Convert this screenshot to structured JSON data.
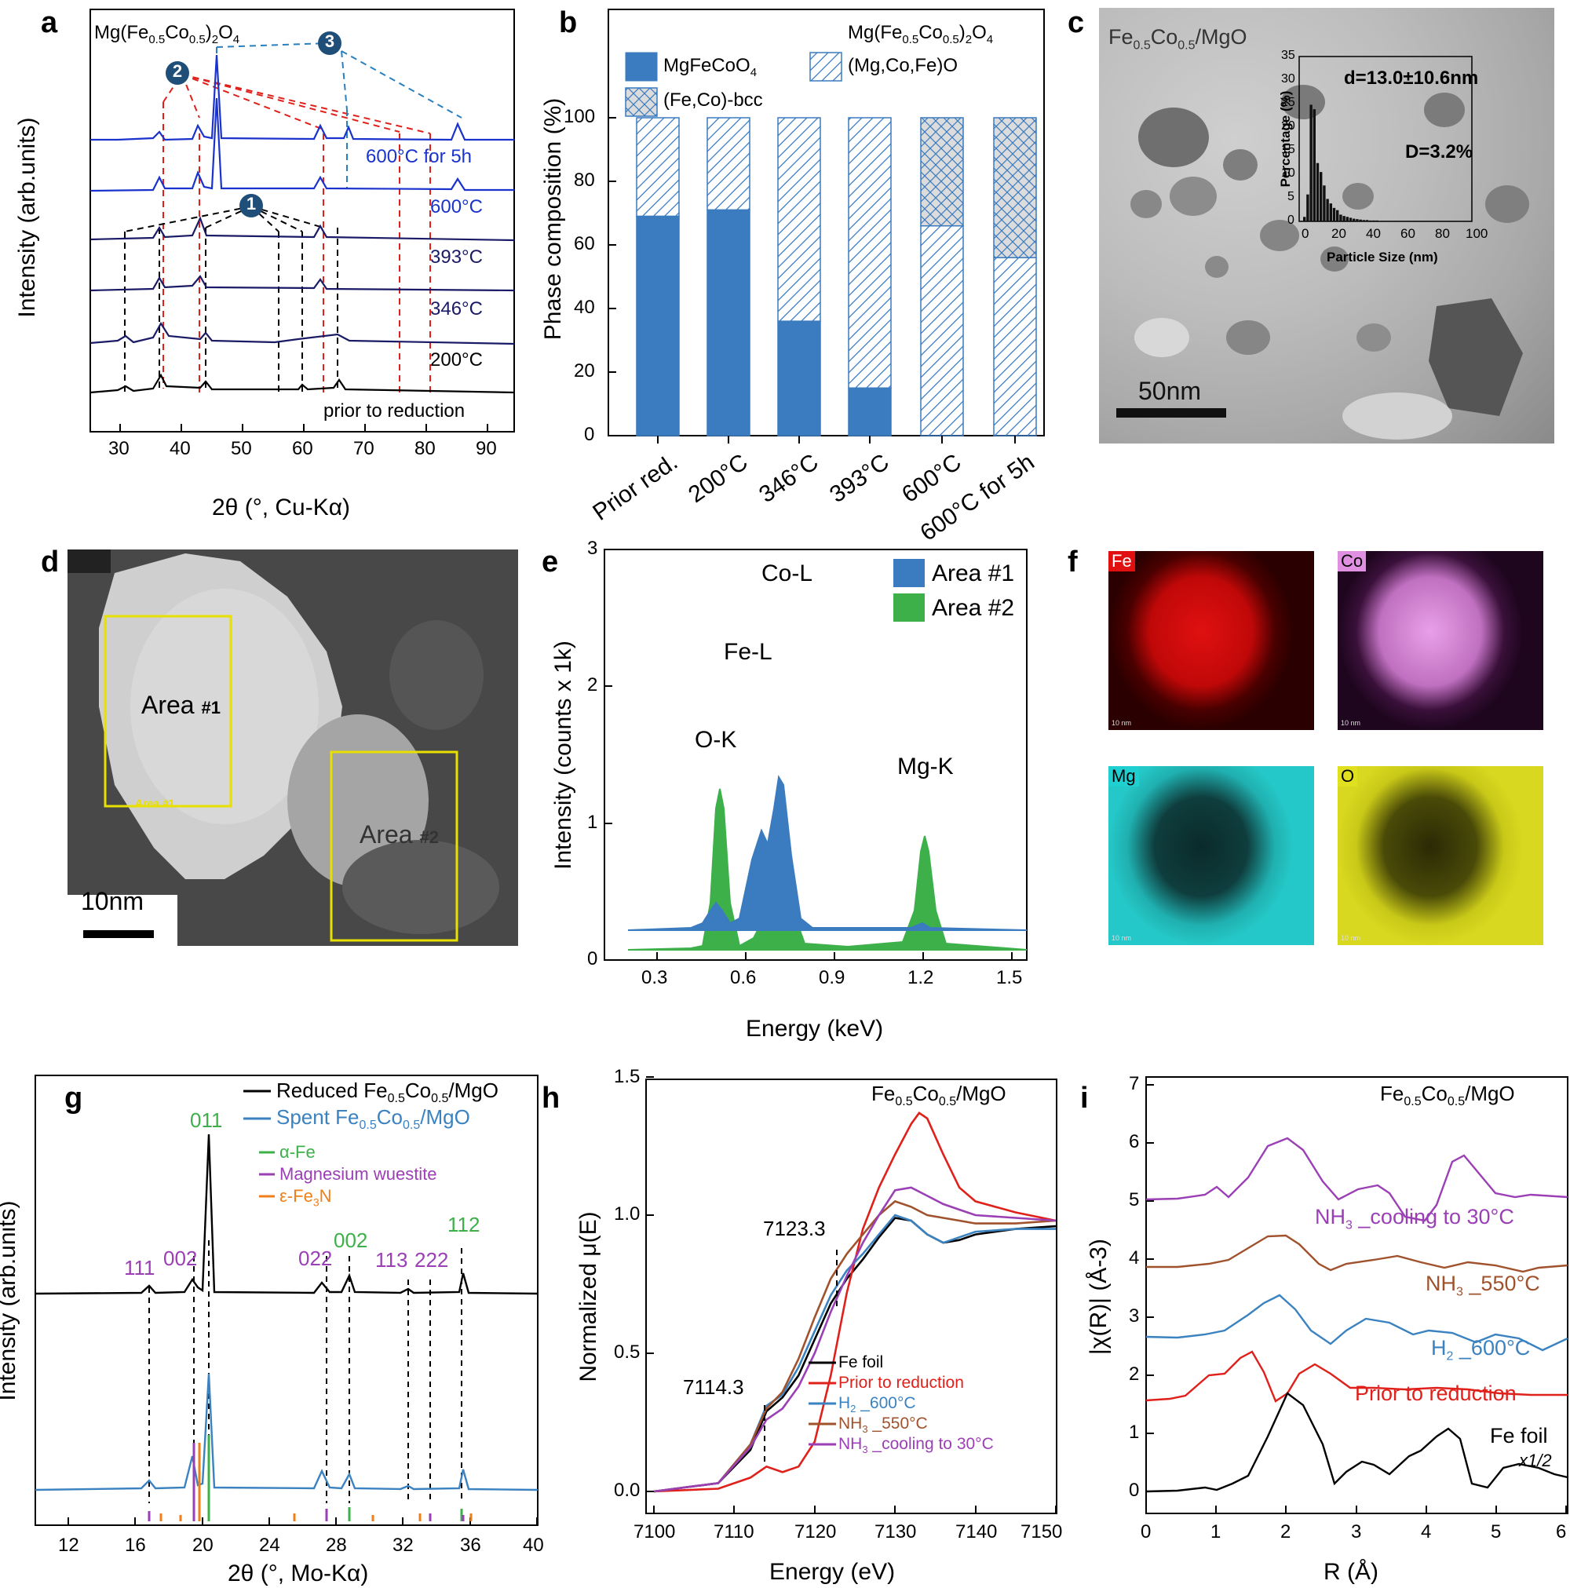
{
  "figure": {
    "panels": {
      "a": {
        "label": "a",
        "title": "Mg(Fe0.5Co0.5)2O4",
        "xlabel": "2θ (°, Cu-Kα)",
        "ylabel": "Intensity (arb.units)",
        "xticks": [
          "30",
          "40",
          "50",
          "60",
          "70",
          "80",
          "90"
        ],
        "xlim": [
          25,
          90
        ],
        "markers": [
          "1",
          "2",
          "3"
        ],
        "traces": [
          "600°C for 5h",
          "600°C",
          "393°C",
          "346°C",
          "200°C",
          "prior to reduction"
        ],
        "colors": {
          "blue": "#1a33cc",
          "navy": "#1a1a66",
          "black": "#000000",
          "red_dash": "#e0201a",
          "black_dash": "#000000",
          "blue_dash": "#2a7fbf"
        }
      },
      "b": {
        "label": "b",
        "title": "Mg(Fe0.5Co0.5)2O4",
        "legend": [
          "MgFeCoO4",
          "(Mg,Co,Fe)O",
          "(Fe,Co)-bcc"
        ],
        "ylabel": "Phase composition (%)",
        "yticks": [
          "0",
          "20",
          "40",
          "60",
          "80",
          "100"
        ]
      },
      "c": {
        "label": "c",
        "title": "Fe0.5Co0.5/MgO",
        "scalebar": "50nm",
        "inset_d": "d=13.0±10.6nm",
        "inset_D": "D=3.2%",
        "inset_xlabel": "Particle Size (nm)",
        "inset_ylabel": "Percentage (%)",
        "inset_xticks": [
          "0",
          "20",
          "40",
          "60",
          "80",
          "100"
        ],
        "inset_yticks": [
          "0",
          "5",
          "10",
          "15",
          "20",
          "25",
          "30",
          "35"
        ]
      },
      "d": {
        "label": "d",
        "area1": "Area",
        "area1_num": "#1",
        "area1_small": "Area #1",
        "area2": "Area",
        "area2_num": "#2",
        "scalebar": "10nm"
      },
      "e": {
        "label": "e",
        "legend": [
          "Area #1",
          "Area #2"
        ],
        "xlabel": "Energy (keV)",
        "ylabel": "Intensity (counts x 1k)",
        "xticks": [
          "0.3",
          "0.6",
          "0.9",
          "1.2",
          "1.5"
        ],
        "yticks": [
          "0",
          "1",
          "2",
          "3"
        ],
        "peaks": [
          "O-K",
          "Fe-L",
          "Co-L",
          "Mg-K"
        ],
        "colors": {
          "area1": "#3b7bbf",
          "area2": "#3db04a"
        }
      },
      "f": {
        "label": "f",
        "maps": [
          "Fe",
          "Co",
          "Mg",
          "O"
        ],
        "scale": "10 nm",
        "colors": {
          "Fe": "#e01010",
          "Co": "#e090e0",
          "Mg": "#20d0d0",
          "O": "#e0e020"
        }
      },
      "g": {
        "label": "g",
        "legend": [
          "Reduced Fe0.5Co0.5/MgO",
          "Spent Fe0.5Co0.5/MgO"
        ],
        "refs": [
          "α-Fe",
          "Magnesium wuestite",
          "ε-Fe3N"
        ],
        "xlabel": "2θ (°, Mo-Kα)",
        "ylabel": "Intensity (arb.units)",
        "xticks": [
          "12",
          "16",
          "20",
          "24",
          "28",
          "32",
          "36",
          "40"
        ],
        "hkl": [
          "111",
          "002",
          "011",
          "022",
          "002",
          "113",
          "222",
          "112"
        ],
        "colors": {
          "reduced": "#000000",
          "spent": "#3b82c0",
          "alphaFe": "#3db04a",
          "wuestite": "#9b3fb5",
          "fe3n": "#f07f1a"
        }
      },
      "h": {
        "label": "h",
        "title": "Fe0.5Co0.5/MgO",
        "xlabel": "Energy (eV)",
        "ylabel": "Normalized μ(E)",
        "xticks": [
          "7100",
          "7110",
          "7120",
          "7130",
          "7140",
          "7150"
        ],
        "yticks": [
          "0.0",
          "0.5",
          "1.0",
          "1.5"
        ],
        "annot": [
          "7123.3",
          "7114.3"
        ],
        "legend": [
          "Fe foil",
          "Prior to reduction",
          "H2 _600°C",
          "NH3 _550°C",
          "NH3 _cooling to 30°C"
        ],
        "colors": [
          "#000000",
          "#e0201a",
          "#3b82c0",
          "#a0522d",
          "#9b3fb5"
        ]
      },
      "i": {
        "label": "i",
        "title": "Fe0.5Co0.5/MgO",
        "xlabel": "R (Å)",
        "ylabel": "|χ(R)| (Å-3)",
        "xticks": [
          "0",
          "1",
          "2",
          "3",
          "4",
          "5",
          "6"
        ],
        "yticks": [
          "0",
          "1",
          "2",
          "3",
          "4",
          "5",
          "6",
          "7"
        ],
        "labels": [
          "NH3 _cooling to 30°C",
          "NH3 _550°C",
          "H2 _600°C",
          "Prior to reduction",
          "Fe foil",
          "x1/2"
        ]
      }
    }
  },
  "chart_data": [
    {
      "panel": "b",
      "type": "bar",
      "stacked": true,
      "categories": [
        "Prior red.",
        "200°C",
        "346°C",
        "393°C",
        "600°C",
        "600°C for 5h"
      ],
      "series": [
        {
          "name": "MgFeCoO4",
          "values": [
            69,
            71,
            36,
            15,
            0,
            0
          ]
        },
        {
          "name": "(Mg,Co,Fe)O",
          "values": [
            31,
            29,
            64,
            85,
            66,
            56
          ]
        },
        {
          "name": "(Fe,Co)-bcc",
          "values": [
            0,
            0,
            0,
            0,
            34,
            44
          ]
        }
      ],
      "ylabel": "Phase composition (%)",
      "ylim": [
        0,
        100
      ]
    },
    {
      "panel": "c-inset",
      "type": "bar",
      "x": [
        2,
        4,
        6,
        8,
        10,
        12,
        14,
        16,
        18,
        20,
        22,
        24,
        26,
        28,
        30,
        32,
        34,
        36,
        38,
        40,
        42,
        44,
        46,
        48,
        50
      ],
      "values": [
        1,
        6,
        26,
        25,
        13,
        11,
        8,
        5,
        4,
        3,
        2.5,
        1.5,
        1.2,
        1,
        0.8,
        0.6,
        0.5,
        0.4,
        0.3,
        0.3,
        0.2,
        0.2,
        0.2,
        0.1,
        0.1
      ],
      "xlabel": "Particle Size (nm)",
      "ylabel": "Percentage (%)",
      "xlim": [
        0,
        100
      ],
      "ylim": [
        0,
        35
      ]
    },
    {
      "panel": "h",
      "type": "line",
      "xlabel": "Energy (eV)",
      "ylabel": "Normalized μ(E)",
      "xlim": [
        7100,
        7150
      ],
      "ylim": [
        0,
        1.5
      ],
      "series": [
        {
          "name": "Fe foil",
          "x": [
            7100,
            7108,
            7112,
            7114,
            7116,
            7118,
            7120,
            7122,
            7124,
            7126,
            7128,
            7130,
            7132,
            7134,
            7136,
            7138,
            7140,
            7145,
            7150
          ],
          "y": [
            0.0,
            0.03,
            0.15,
            0.29,
            0.34,
            0.42,
            0.55,
            0.68,
            0.77,
            0.84,
            0.92,
            0.99,
            0.98,
            0.93,
            0.9,
            0.91,
            0.93,
            0.95,
            0.96
          ]
        },
        {
          "name": "Prior to reduction",
          "x": [
            7100,
            7108,
            7112,
            7114,
            7116,
            7118,
            7120,
            7122,
            7124,
            7126,
            7128,
            7130,
            7132,
            7133,
            7134,
            7136,
            7138,
            7140,
            7145,
            7150
          ],
          "y": [
            0.0,
            0.01,
            0.05,
            0.09,
            0.07,
            0.09,
            0.18,
            0.42,
            0.72,
            0.95,
            1.1,
            1.22,
            1.33,
            1.37,
            1.35,
            1.22,
            1.1,
            1.05,
            1.01,
            0.98
          ]
        },
        {
          "name": "H2 _600°C",
          "x": [
            7100,
            7108,
            7112,
            7114,
            7116,
            7118,
            7120,
            7122,
            7124,
            7126,
            7128,
            7130,
            7132,
            7134,
            7136,
            7138,
            7140,
            7145,
            7150
          ],
          "y": [
            0.0,
            0.03,
            0.17,
            0.31,
            0.35,
            0.45,
            0.58,
            0.71,
            0.8,
            0.86,
            0.93,
            1.0,
            0.98,
            0.93,
            0.9,
            0.92,
            0.94,
            0.95,
            0.95
          ]
        },
        {
          "name": "NH3 _550°C",
          "x": [
            7100,
            7108,
            7112,
            7114,
            7116,
            7118,
            7120,
            7122,
            7124,
            7126,
            7128,
            7130,
            7132,
            7134,
            7136,
            7138,
            7140,
            7145,
            7150
          ],
          "y": [
            0.0,
            0.03,
            0.17,
            0.3,
            0.36,
            0.48,
            0.63,
            0.77,
            0.86,
            0.93,
            1.0,
            1.05,
            1.03,
            1.0,
            0.99,
            0.98,
            0.97,
            0.97,
            0.98
          ]
        },
        {
          "name": "NH3 _cooling to 30°C",
          "x": [
            7100,
            7108,
            7112,
            7114,
            7116,
            7118,
            7120,
            7122,
            7124,
            7126,
            7128,
            7130,
            7132,
            7134,
            7136,
            7138,
            7140,
            7145,
            7150
          ],
          "y": [
            0.0,
            0.03,
            0.16,
            0.26,
            0.3,
            0.38,
            0.5,
            0.65,
            0.78,
            0.9,
            1.0,
            1.09,
            1.1,
            1.07,
            1.04,
            1.02,
            1.0,
            0.99,
            0.98
          ]
        }
      ]
    }
  ]
}
